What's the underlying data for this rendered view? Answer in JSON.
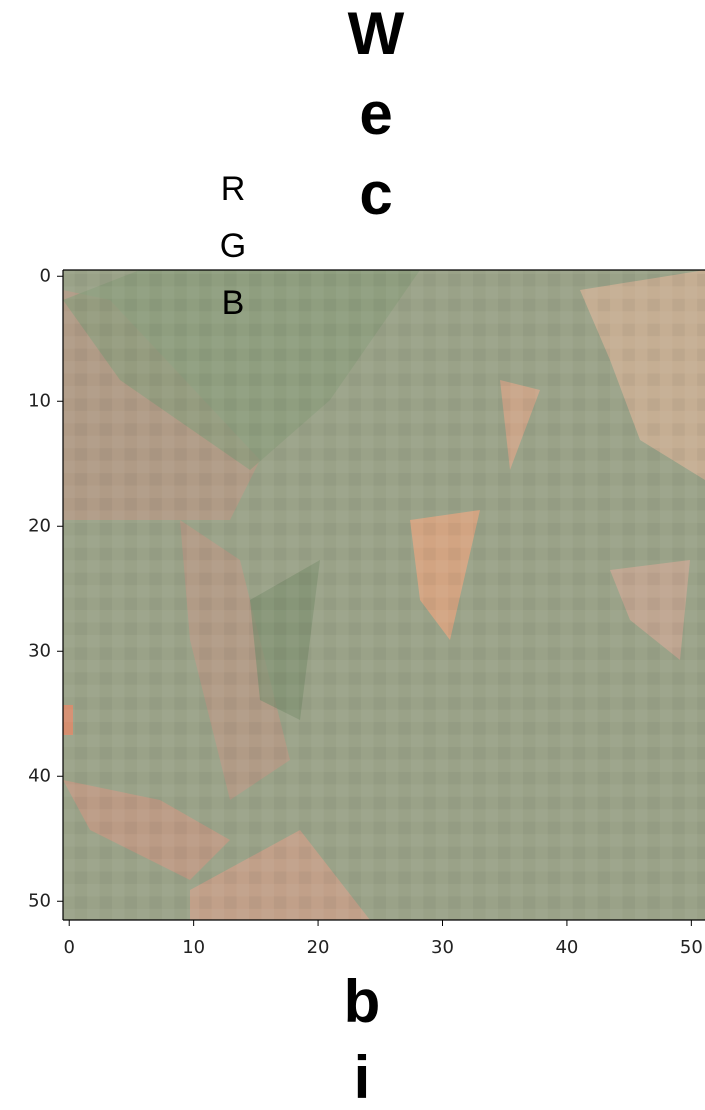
{
  "chart_data": {
    "type": "image",
    "title_lines": [
      "W",
      "e",
      "c"
    ],
    "legend_lines": [
      "R",
      "G",
      "B"
    ],
    "xlabel_lines": [
      "b",
      "i"
    ],
    "xlim": [
      -0.5,
      51.5
    ],
    "ylim": [
      51.5,
      -0.5
    ],
    "xticks": [
      0,
      10,
      20,
      30,
      40,
      50
    ],
    "yticks": [
      0,
      10,
      20,
      30,
      40,
      50
    ]
  }
}
